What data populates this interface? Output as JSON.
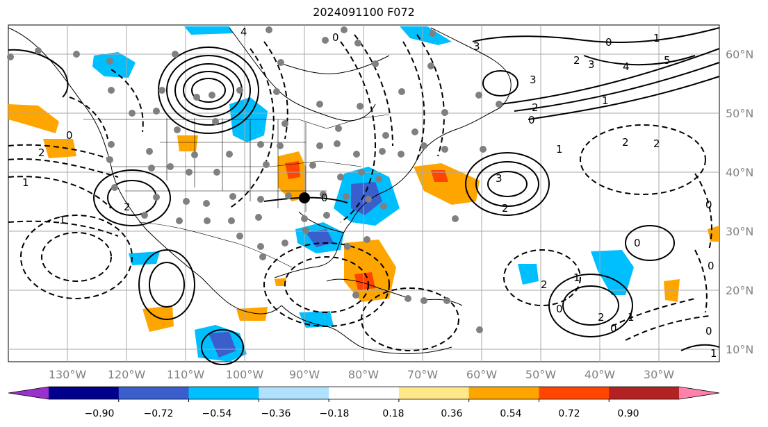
{
  "title": "2024091100 F072",
  "map": {
    "lon_labels": [
      "130°W",
      "120°W",
      "110°W",
      "100°W",
      "90°W",
      "80°W",
      "70°W",
      "60°W",
      "50°W",
      "40°W",
      "30°W"
    ],
    "lat_labels": [
      "60°N",
      "50°N",
      "40°N",
      "30°N",
      "20°N",
      "10°N"
    ],
    "contour_labels": [
      "0",
      "4",
      "3",
      "0",
      "1",
      "2",
      "3",
      "4",
      "5",
      "1",
      "2",
      "3",
      "0",
      "1",
      "2",
      "2",
      "0",
      "1",
      "2",
      "3",
      "2",
      "0",
      "1",
      "2",
      "0",
      "0",
      "1",
      "2",
      "0",
      "2",
      "0",
      "1",
      "0",
      "1"
    ],
    "marker_label": "0"
  },
  "colorbar": {
    "ticks": [
      "−0.90",
      "−0.72",
      "−0.54",
      "−0.36",
      "−0.18",
      "0.18",
      "0.36",
      "0.54",
      "0.72",
      "0.90"
    ],
    "colors": [
      "#9932cc",
      "#00008b",
      "#3a5fcd",
      "#00bfff",
      "#b0e2ff",
      "#ffffff",
      "#ffe88a",
      "#ffa500",
      "#ff4500",
      "#b22222",
      "#ff82ab"
    ]
  }
}
